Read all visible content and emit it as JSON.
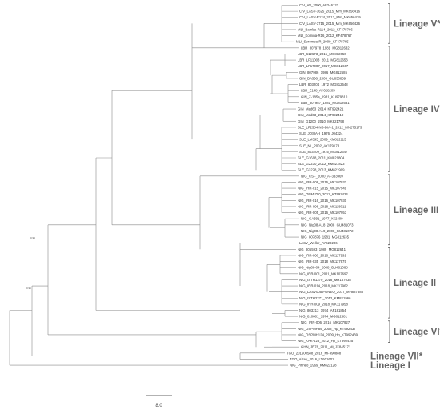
{
  "taxa": [
    "CIV_AV_2000_AF246121",
    "CIV_LASV-3625_2015_Mm_MK656416",
    "CIV_LASV-R124_2013_Mm_MK656419",
    "CIV_LASV-3715_2015_Mm_MK656426",
    "MLI_Bamba-R114_2012_KF478766",
    "MLI_Komina-R16_2012_KF478767",
    "MLI_Soromba-R_2009_KF478765",
    "LBR_807978_1981_MG812632",
    "LBR_612673_2015_MG812650",
    "LBR_LF11003_2011_MG812653",
    "LBR_LF17007_2017_MG812667",
    "GIN_807986_1986_MG812685",
    "GIN_BA366_2003_GU830839",
    "LBR_803204_1972_MG812648",
    "LBR_Z148_AY628205",
    "GIN_Z-185a_1981_KU979810",
    "LBR_807987_1981_MG812631",
    "GIN_Mad63_2014_KT992421",
    "GIN_Mad63_2014_KT992419",
    "GIN_G1200_2010_MK821798",
    "SLE_LF2384-NS-DIA-1_2012_MN275173",
    "SLE_JOSIAH_1976_J04324",
    "SLE_LM395_2009_KM822115",
    "SLE_NL_2002_AY179173",
    "SLE_803209_1975_MG812647",
    "SLE_G1618_2011_KM821804",
    "SLE_G2230_2012_KM821823",
    "SLE_G3278_2013_KM821909",
    "NIG_CSF_2000_AF333969",
    "NIG_IRR-008_2016_MK107931",
    "NIG_IRR-015_2015_MK107949",
    "NIG_ONM-700_2012_KT992424",
    "NIG_IRR-016_2016_MK107930",
    "NIG_IRR-096_2018_MK118011",
    "NIG_IRR-005_2016_MK107953",
    "NIG_GA391_1977_X52400",
    "NIG_Nig08-A18_2008_GU481073",
    "NIG_Nig08-A19_2008_GU481072",
    "NIG_807876_1981_MG812635",
    "LASV_Weller_AY628206",
    "NIG_806593_1989_MG812641",
    "NIG_IRR-060_2018_MK117992",
    "NIG_IRR-035_2018_MK117975",
    "NIG_Nig08-04_2008_GU481068",
    "NIG_IRR-001_2011_MK107697",
    "NIG_ISTH1379_2018_MH157038",
    "NIG_IRR-014_2018_MK117962",
    "NIG_LASV0059-ONEO_2017_MH887888",
    "NIG_ISTH2271_2012_KM821966",
    "NIG_IRR-009_2018_MK117958",
    "NIG_803213_1974_AF181854",
    "NIG_810801_1974_MG812681",
    "NIG_IRR-006_2016_MK107927",
    "NIG_OSPMH89_2008_Hp_KT992437",
    "NIG_OSPMH124_2009_Hp_KT992439",
    "NIG_KAK-428_2012_Hp_KT992425",
    "GHN_JR76_2011_Mi_JX845171",
    "TGO_201600588_2016_MF990888",
    "TGO_Alzey_2016_LT601602",
    "NIG_Pinneo_1969_KM822128"
  ],
  "lineages": [
    {
      "label": "Lineage V*"
    },
    {
      "label": "Lineage IV"
    },
    {
      "label": "Lineage III"
    },
    {
      "label": "Lineage II"
    },
    {
      "label": "Lineage VI*"
    },
    {
      "label": "Lineage VII*"
    },
    {
      "label": "Lineage I"
    }
  ],
  "scale_label": "8.0",
  "root_supports": [
    "0.94",
    "0.96"
  ]
}
